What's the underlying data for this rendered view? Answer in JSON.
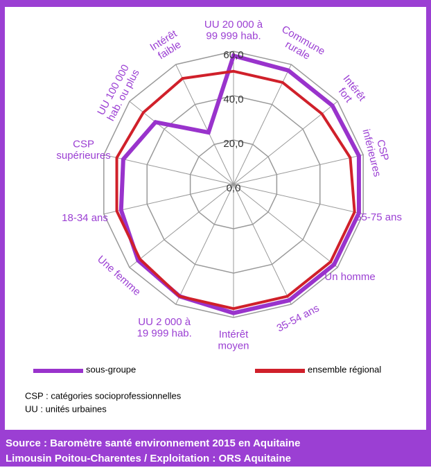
{
  "chart_data": {
    "type": "radar",
    "categories": [
      "UU 20 000 à\n99 999 hab.",
      "Commune\nrurale",
      "Intérêt\nfort",
      "CSP\ninférieures",
      "55-75 ans",
      "Un homme",
      "35-54 ans",
      "Intérêt\nmoyen",
      "UU 2 000 à\n19 999 hab.",
      "Une femme",
      "18-34 ans",
      "CSP\nsupérieures",
      "UU 100 000\nhab. ou plus",
      "Intérêt\nfaible"
    ],
    "series": [
      {
        "name": "sous-groupe",
        "color": "#9933cc",
        "values": [
          58,
          57,
          57,
          58,
          58,
          58,
          58,
          58,
          56,
          55,
          52,
          51,
          45,
          26
        ]
      },
      {
        "name": "ensemble régional",
        "color": "#d0202a",
        "values": [
          51,
          51,
          51,
          54,
          56,
          56,
          56,
          56,
          56,
          54,
          54,
          54,
          52,
          53
        ]
      }
    ],
    "ylim": [
      0,
      60
    ],
    "yticks": [
      {
        "value": 0,
        "label": "0,0"
      },
      {
        "value": 20,
        "label": "20,0"
      },
      {
        "value": 40,
        "label": "40,0"
      },
      {
        "value": 60,
        "label": "60,0"
      }
    ],
    "notes": [
      "CSP : catégories socioprofessionnelles",
      "UU : unités urbaines"
    ],
    "source": [
      "Source : Baromètre santé environnement 2015 en Aquitaine",
      "Limousin Poitou-Charentes  / Exploitation : ORS Aquitaine"
    ]
  }
}
